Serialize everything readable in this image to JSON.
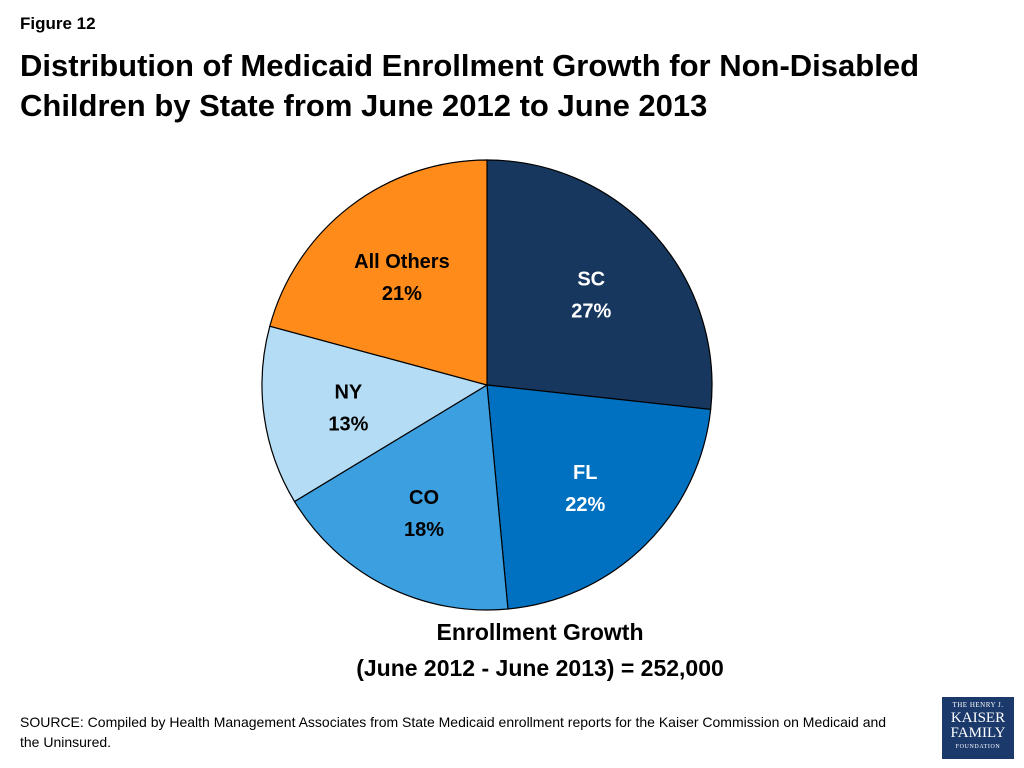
{
  "figure_label": "Figure 12",
  "title_line1": "Distribution of Medicaid Enrollment Growth for Non-Disabled",
  "title_line2": "Children by State from June 2012 to June 2013",
  "footnote_line1": "Enrollment Growth",
  "footnote_line2": "(June 2012 - June 2013) = 252,000",
  "source": "SOURCE: Compiled by Health Management Associates from State Medicaid enrollment reports for the Kaiser Commission on Medicaid and the Uninsured.",
  "logo": {
    "line1": "THE HENRY J.",
    "line2": "KAISER",
    "line3": "FAMILY",
    "line4": "FOUNDATION"
  },
  "chart_data": {
    "type": "pie",
    "categories": [
      "SC",
      "FL",
      "CO",
      "NY",
      "All Others"
    ],
    "values": [
      27,
      22,
      18,
      13,
      21
    ],
    "labels": [
      "27%",
      "22%",
      "18%",
      "13%",
      "21%"
    ],
    "colors": [
      "#17375e",
      "#0070c0",
      "#3ca0e0",
      "#b4dcf4",
      "#ff8c1a"
    ],
    "label_colors": [
      "#ffffff",
      "#ffffff",
      "#000000",
      "#000000",
      "#000000"
    ],
    "start": "12 o'clock",
    "direction": "clockwise"
  }
}
